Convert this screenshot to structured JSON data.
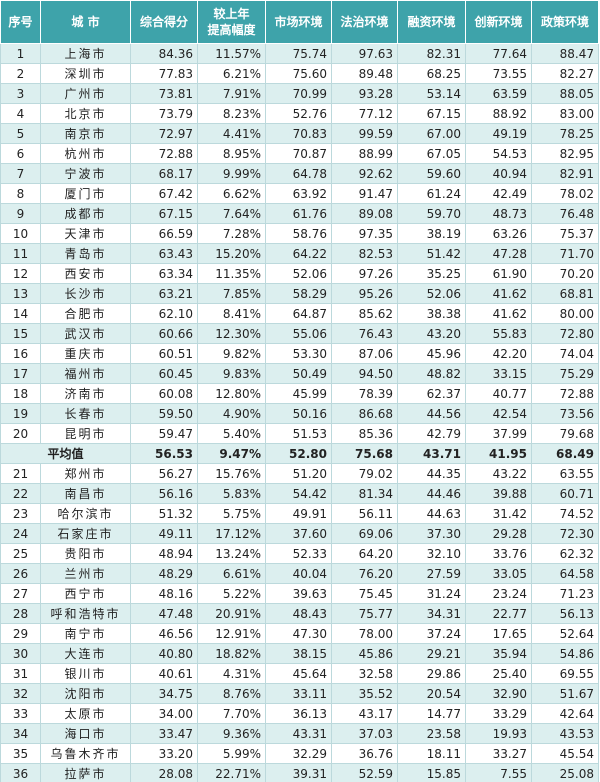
{
  "table": {
    "header": [
      "序号",
      "城 市",
      "综合得分",
      [
        "较上年",
        "提高幅度"
      ],
      "市场环境",
      "法治环境",
      "融资环境",
      "创新环境",
      "政策环境"
    ],
    "rows": [
      [
        "1",
        "上海市",
        "84.36",
        "11.57%",
        "75.74",
        "97.63",
        "82.31",
        "77.64",
        "88.47"
      ],
      [
        "2",
        "深圳市",
        "77.83",
        "6.21%",
        "75.60",
        "89.48",
        "68.25",
        "73.55",
        "82.27"
      ],
      [
        "3",
        "广州市",
        "73.81",
        "7.91%",
        "70.99",
        "93.28",
        "53.14",
        "63.59",
        "88.05"
      ],
      [
        "4",
        "北京市",
        "73.79",
        "8.23%",
        "52.76",
        "77.12",
        "67.15",
        "88.92",
        "83.00"
      ],
      [
        "5",
        "南京市",
        "72.97",
        "4.41%",
        "70.83",
        "99.59",
        "67.00",
        "49.19",
        "78.25"
      ],
      [
        "6",
        "杭州市",
        "72.88",
        "8.95%",
        "70.87",
        "88.99",
        "67.05",
        "54.53",
        "82.95"
      ],
      [
        "7",
        "宁波市",
        "68.17",
        "9.99%",
        "64.78",
        "92.62",
        "59.60",
        "40.94",
        "82.91"
      ],
      [
        "8",
        "厦门市",
        "67.42",
        "6.62%",
        "63.92",
        "91.47",
        "61.24",
        "42.49",
        "78.02"
      ],
      [
        "9",
        "成都市",
        "67.15",
        "7.64%",
        "61.76",
        "89.08",
        "59.70",
        "48.73",
        "76.48"
      ],
      [
        "10",
        "天津市",
        "66.59",
        "7.28%",
        "58.76",
        "97.35",
        "38.19",
        "63.26",
        "75.37"
      ],
      [
        "11",
        "青岛市",
        "63.43",
        "15.20%",
        "64.22",
        "82.53",
        "51.42",
        "47.28",
        "71.70"
      ],
      [
        "12",
        "西安市",
        "63.34",
        "11.35%",
        "52.06",
        "97.26",
        "35.25",
        "61.90",
        "70.20"
      ],
      [
        "13",
        "长沙市",
        "63.21",
        "7.85%",
        "58.29",
        "95.26",
        "52.06",
        "41.62",
        "68.81"
      ],
      [
        "14",
        "合肥市",
        "62.10",
        "8.41%",
        "64.87",
        "85.62",
        "38.38",
        "41.62",
        "80.00"
      ],
      [
        "15",
        "武汉市",
        "60.66",
        "12.30%",
        "55.06",
        "76.43",
        "43.20",
        "55.83",
        "72.80"
      ],
      [
        "16",
        "重庆市",
        "60.51",
        "9.82%",
        "53.30",
        "87.06",
        "45.96",
        "42.20",
        "74.04"
      ],
      [
        "17",
        "福州市",
        "60.45",
        "9.83%",
        "50.49",
        "94.50",
        "48.82",
        "33.15",
        "75.29"
      ],
      [
        "18",
        "济南市",
        "60.08",
        "12.80%",
        "45.99",
        "78.39",
        "62.37",
        "40.77",
        "72.88"
      ],
      [
        "19",
        "长春市",
        "59.50",
        "4.90%",
        "50.16",
        "86.68",
        "44.56",
        "42.54",
        "73.56"
      ],
      [
        "20",
        "昆明市",
        "59.47",
        "5.40%",
        "51.53",
        "85.36",
        "42.79",
        "37.99",
        "79.68"
      ],
      [
        "平均值",
        "56.53",
        "9.47%",
        "52.80",
        "75.68",
        "43.71",
        "41.95",
        "68.49"
      ],
      [
        "21",
        "郑州市",
        "56.27",
        "15.76%",
        "51.20",
        "79.02",
        "44.35",
        "43.22",
        "63.55"
      ],
      [
        "22",
        "南昌市",
        "56.16",
        "5.83%",
        "54.42",
        "81.34",
        "44.46",
        "39.88",
        "60.71"
      ],
      [
        "23",
        "哈尔滨市",
        "51.32",
        "5.75%",
        "49.91",
        "56.11",
        "44.63",
        "31.42",
        "74.52"
      ],
      [
        "24",
        "石家庄市",
        "49.11",
        "17.12%",
        "37.60",
        "69.06",
        "37.30",
        "29.28",
        "72.30"
      ],
      [
        "25",
        "贵阳市",
        "48.94",
        "13.24%",
        "52.33",
        "64.20",
        "32.10",
        "33.76",
        "62.32"
      ],
      [
        "26",
        "兰州市",
        "48.29",
        "6.61%",
        "40.04",
        "76.20",
        "27.59",
        "33.05",
        "64.58"
      ],
      [
        "27",
        "西宁市",
        "48.16",
        "5.22%",
        "39.63",
        "75.45",
        "31.24",
        "23.24",
        "71.23"
      ],
      [
        "28",
        "呼和浩特市",
        "47.48",
        "20.91%",
        "48.43",
        "75.77",
        "34.31",
        "22.77",
        "56.13"
      ],
      [
        "29",
        "南宁市",
        "46.56",
        "12.91%",
        "47.30",
        "78.00",
        "37.24",
        "17.65",
        "52.64"
      ],
      [
        "30",
        "大连市",
        "40.80",
        "18.82%",
        "38.15",
        "45.86",
        "29.21",
        "35.94",
        "54.86"
      ],
      [
        "31",
        "银川市",
        "40.61",
        "4.31%",
        "45.64",
        "32.58",
        "29.86",
        "25.40",
        "69.55"
      ],
      [
        "32",
        "沈阳市",
        "34.75",
        "8.76%",
        "33.11",
        "35.52",
        "20.54",
        "32.90",
        "51.67"
      ],
      [
        "33",
        "太原市",
        "34.00",
        "7.70%",
        "36.13",
        "43.17",
        "14.77",
        "33.29",
        "42.64"
      ],
      [
        "34",
        "海口市",
        "33.47",
        "9.36%",
        "43.31",
        "37.03",
        "23.58",
        "19.93",
        "43.53"
      ],
      [
        "35",
        "乌鲁木齐市",
        "33.20",
        "5.99%",
        "32.29",
        "36.76",
        "18.11",
        "33.27",
        "45.54"
      ],
      [
        "36",
        "拉萨市",
        "28.08",
        "22.71%",
        "39.31",
        "52.59",
        "15.85",
        "7.55",
        "25.08"
      ]
    ]
  }
}
